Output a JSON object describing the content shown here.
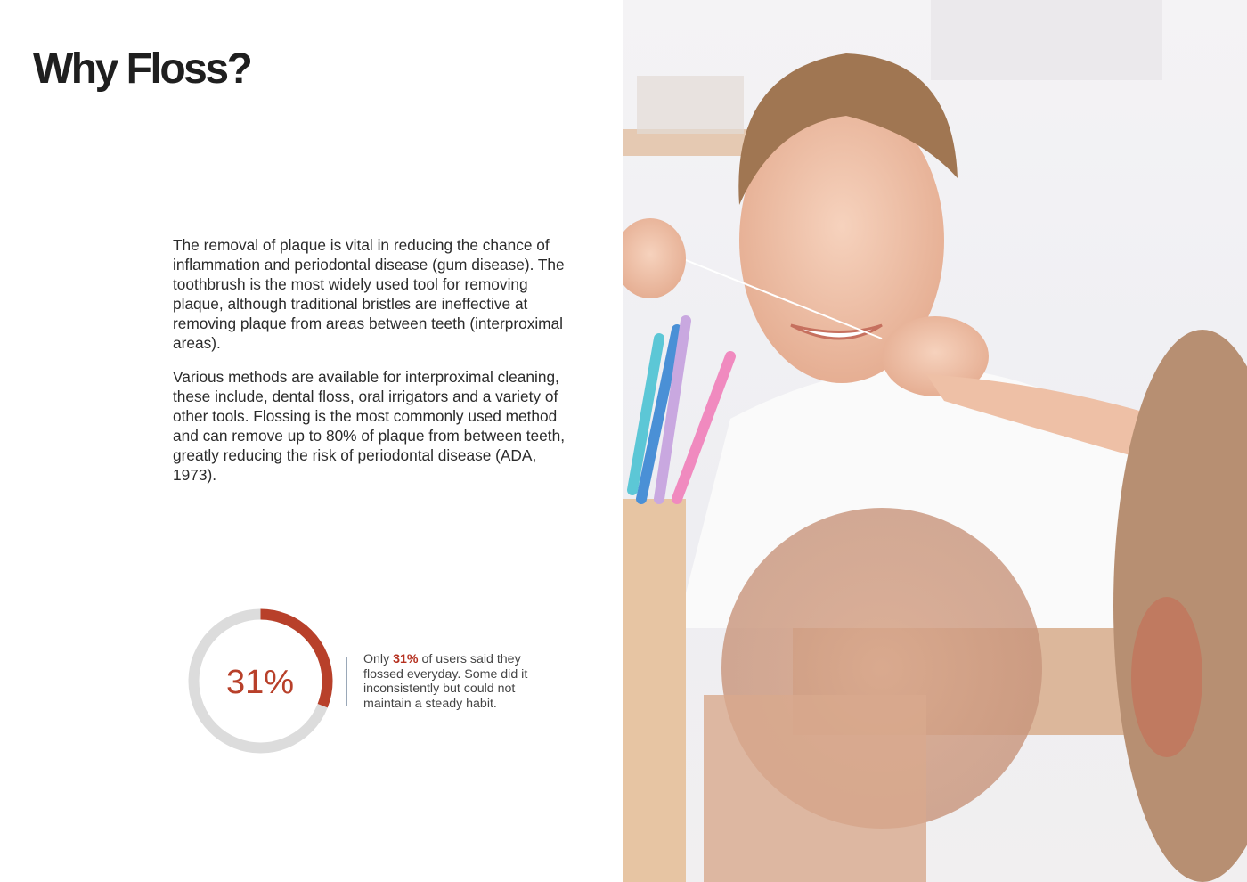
{
  "title": "Why Floss?",
  "paragraphs": [
    "The removal of plaque is vital in reducing the chance of inflammation and periodontal disease (gum disease). The toothbrush is the most widely used tool for removing plaque, although traditional bristles are ineffective at removing plaque from areas between teeth (interproximal areas).",
    "Various methods are available for interproximal cleaning, these include, dental floss, oral irrigators and a variety of other tools. Flossing is the most commonly used method and can remove up to 80% of plaque from between teeth, greatly reducing the risk of periodontal disease (ADA, 1973)."
  ],
  "stat": {
    "value_label": "31%",
    "percent": 31,
    "text_before": "Only ",
    "highlight": "31%",
    "text_after": " of users said they flossed everyday. Some did it inconsistently but could not maintain a steady habit.",
    "accent_color": "#b8402a",
    "track_color": "#dcdcdc"
  }
}
